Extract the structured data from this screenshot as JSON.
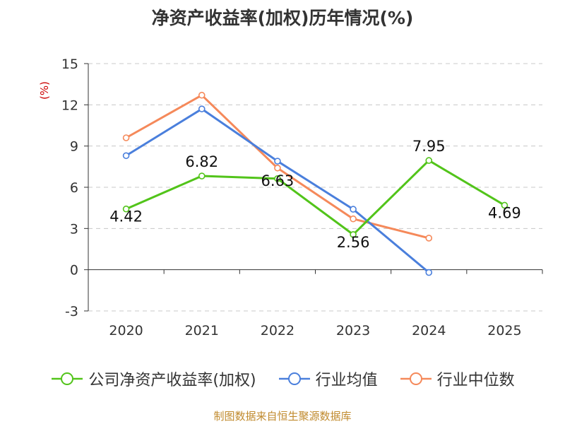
{
  "chart_data": {
    "type": "line",
    "title": "净资产收益率(加权)历年情况(%)",
    "ylabel": "(%)",
    "xlabel": "",
    "categories": [
      "2020",
      "2021",
      "2022",
      "2023",
      "2024",
      "2025"
    ],
    "ylim": [
      -3,
      15
    ],
    "yticks": [
      -3,
      0,
      3,
      6,
      9,
      12,
      15
    ],
    "grid": true,
    "legend_position": "bottom",
    "series": [
      {
        "name": "公司净资产收益率(加权)",
        "color": "#52c41a",
        "values": [
          4.42,
          6.82,
          6.63,
          2.56,
          7.95,
          4.69
        ],
        "labels": [
          "4.42",
          "6.82",
          "6.63",
          "2.56",
          "7.95",
          "4.69"
        ]
      },
      {
        "name": "行业均值",
        "color": "#4a7fdc",
        "values": [
          8.3,
          11.7,
          7.9,
          4.4,
          -0.2,
          null
        ]
      },
      {
        "name": "行业中位数",
        "color": "#f5895a",
        "values": [
          9.6,
          12.7,
          7.4,
          3.7,
          2.3,
          null
        ]
      }
    ]
  },
  "source": "制图数据来自恒生聚源数据库"
}
